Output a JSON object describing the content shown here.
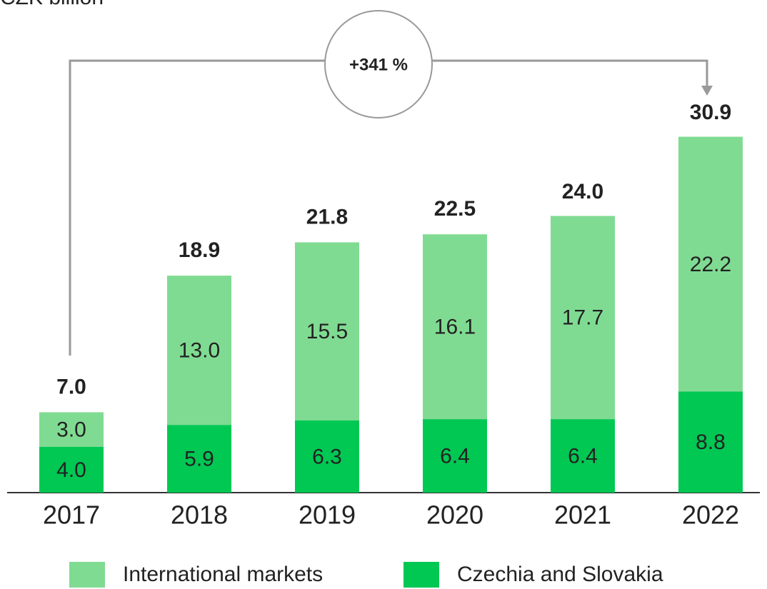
{
  "chart_data": {
    "type": "stacked_bar",
    "title": "CZK billion",
    "categories": [
      "2017",
      "2018",
      "2019",
      "2020",
      "2021",
      "2022"
    ],
    "series": [
      {
        "name": "International markets",
        "color": "#80db92",
        "values": [
          3.0,
          13.0,
          15.5,
          16.1,
          17.7,
          22.2
        ],
        "value_labels": [
          "3.0",
          "13.0",
          "15.5",
          "16.1",
          "17.7",
          "22.2"
        ]
      },
      {
        "name": "Czechia and Slovakia",
        "color": "#00c853",
        "values": [
          4.0,
          5.9,
          6.3,
          6.4,
          6.4,
          8.8
        ],
        "value_labels": [
          "4.0",
          "5.9",
          "6.3",
          "6.4",
          "6.4",
          "8.8"
        ]
      }
    ],
    "totals": [
      7.0,
      18.9,
      21.8,
      22.5,
      24.0,
      30.9
    ],
    "total_labels": [
      "7.0",
      "18.9",
      "21.8",
      "22.5",
      "24.0",
      "30.9"
    ],
    "annotation": "+341 %"
  }
}
